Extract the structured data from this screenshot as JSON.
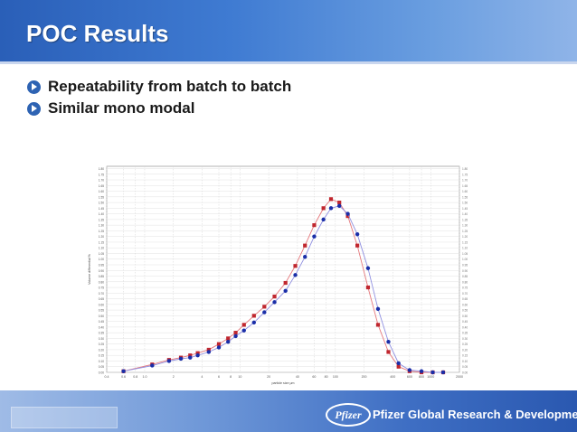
{
  "slide": {
    "title": "POC Results",
    "bullets": [
      {
        "label": "Repeatability from batch to batch"
      },
      {
        "label": "Similar mono modal"
      }
    ]
  },
  "footer": {
    "logo_text": "Pfizer",
    "company": "Pfizer Global Research & Development"
  },
  "chart_data": {
    "type": "scatter",
    "xlabel": "particle size µm",
    "ylabel": "Volume differential %",
    "x_scale": "log",
    "xlim": [
      0.4,
      2000
    ],
    "ylim": [
      0,
      1.82
    ],
    "x_ticks": [
      "0.4",
      "0.6",
      "0.8",
      "1.0",
      "2",
      "4",
      "6",
      "8",
      "10",
      "20",
      "40",
      "60",
      "80",
      "100",
      "200",
      "400",
      "600",
      "800",
      "1000",
      "2000"
    ],
    "y_ticks": [
      "0.00",
      "0.05",
      "0.10",
      "0.15",
      "0.20",
      "0.25",
      "0.30",
      "0.35",
      "0.40",
      "0.45",
      "0.50",
      "0.55",
      "0.60",
      "0.65",
      "0.70",
      "0.75",
      "0.80",
      "0.85",
      "0.90",
      "0.95",
      "1.00",
      "1.05",
      "1.10",
      "1.15",
      "1.20",
      "1.25",
      "1.30",
      "1.35",
      "1.40",
      "1.45",
      "1.50",
      "1.55",
      "1.60",
      "1.65",
      "1.70",
      "1.75",
      "1.80"
    ],
    "grid": true,
    "series": [
      {
        "color": "#c0262e",
        "marker": "square",
        "line_color": "#e5787c",
        "x": [
          0.6,
          1.2,
          1.8,
          2.4,
          3.0,
          3.6,
          4.7,
          6.0,
          7.5,
          9.0,
          11.0,
          14.0,
          18.0,
          23.0,
          30.0,
          38.0,
          48.0,
          60.0,
          75.0,
          90.0,
          110.0,
          135.0,
          170.0,
          220.0,
          280.0,
          360.0,
          460.0,
          600.0,
          800.0,
          1050.0,
          1350.0
        ],
        "y": [
          0.01,
          0.07,
          0.11,
          0.13,
          0.15,
          0.17,
          0.2,
          0.25,
          0.3,
          0.35,
          0.42,
          0.5,
          0.58,
          0.67,
          0.79,
          0.94,
          1.12,
          1.3,
          1.45,
          1.53,
          1.5,
          1.38,
          1.12,
          0.75,
          0.42,
          0.18,
          0.05,
          0.01,
          0.0,
          0.0,
          0.0
        ]
      },
      {
        "color": "#1a2ea8",
        "marker": "circle",
        "line_color": "#8f8fe0",
        "x": [
          0.6,
          1.2,
          1.8,
          2.4,
          3.0,
          3.6,
          4.7,
          6.0,
          7.5,
          9.0,
          11.0,
          14.0,
          18.0,
          23.0,
          30.0,
          38.0,
          48.0,
          60.0,
          75.0,
          90.0,
          110.0,
          135.0,
          170.0,
          220.0,
          280.0,
          360.0,
          460.0,
          600.0,
          800.0,
          1050.0,
          1350.0
        ],
        "y": [
          0.01,
          0.06,
          0.1,
          0.12,
          0.13,
          0.15,
          0.18,
          0.22,
          0.27,
          0.32,
          0.37,
          0.44,
          0.53,
          0.62,
          0.72,
          0.86,
          1.02,
          1.2,
          1.35,
          1.45,
          1.47,
          1.4,
          1.22,
          0.92,
          0.56,
          0.27,
          0.08,
          0.02,
          0.01,
          0.0,
          0.0
        ]
      }
    ]
  }
}
